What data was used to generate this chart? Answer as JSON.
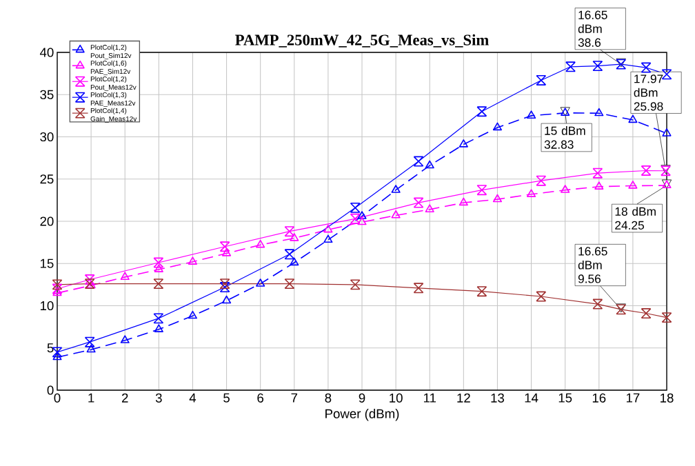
{
  "chart_data": {
    "type": "line",
    "title": "PAMP_250mW_42_5G_Meas_vs_Sim",
    "xlabel": "Power (dBm)",
    "xlim": [
      0,
      18
    ],
    "ylim": [
      0,
      40
    ],
    "xticks": [
      0,
      1,
      2,
      3,
      4,
      5,
      6,
      7,
      8,
      9,
      10,
      11,
      12,
      13,
      14,
      15,
      16,
      17,
      18
    ],
    "yticks": [
      0,
      5,
      10,
      15,
      20,
      25,
      30,
      35,
      40
    ],
    "grid": true,
    "legend": "top left",
    "series": [
      {
        "name": "PlotCol(1,2) Pout_Sim12v",
        "color": "#0000ff",
        "marker": "triangle",
        "line_style": "dashed",
        "x": [
          0,
          1,
          2,
          3,
          4,
          5,
          6,
          7,
          8,
          9,
          10,
          11,
          12,
          13,
          14,
          15,
          16,
          17,
          18
        ],
        "values": [
          3.9,
          4.8,
          5.9,
          7.2,
          8.8,
          10.6,
          12.6,
          15.1,
          17.8,
          20.6,
          23.7,
          26.6,
          29.1,
          31.1,
          32.5,
          32.83,
          32.8,
          32.0,
          30.4
        ]
      },
      {
        "name": "PlotCol(1,6) PAE_Sim12v",
        "color": "#ff00ff",
        "marker": "triangle",
        "line_style": "dashed",
        "x": [
          0,
          1,
          2,
          3,
          4,
          5,
          6,
          7,
          8,
          9,
          10,
          11,
          12,
          13,
          14,
          15,
          16,
          17,
          18
        ],
        "values": [
          11.5,
          12.4,
          13.4,
          14.3,
          15.2,
          16.2,
          17.2,
          18.0,
          19.0,
          19.9,
          20.7,
          21.4,
          22.2,
          22.6,
          23.2,
          23.7,
          24.1,
          24.2,
          24.25
        ]
      },
      {
        "name": "PlotCol(1,2) Pout_Meas12v",
        "color": "#ff00ff",
        "marker": "cross",
        "line_style": "solid",
        "x": [
          0,
          0.96,
          2.99,
          4.95,
          6.86,
          8.8,
          10.67,
          12.54,
          14.29,
          15.96,
          17.39,
          17.97
        ],
        "values": [
          12.0,
          13.1,
          15.1,
          17.0,
          18.8,
          20.3,
          22.2,
          23.7,
          24.8,
          25.7,
          26.0,
          25.98
        ]
      },
      {
        "name": "PlotCol(1,3) PAE_Meas12v",
        "color": "#0000ff",
        "marker": "cross",
        "line_style": "solid",
        "x": [
          0,
          0.96,
          2.99,
          4.95,
          6.86,
          8.8,
          10.67,
          12.54,
          14.29,
          15.16,
          15.96,
          16.65,
          17.39,
          18
        ],
        "values": [
          4.5,
          5.7,
          8.5,
          12.2,
          16.1,
          21.6,
          27.1,
          33.0,
          36.7,
          38.3,
          38.4,
          38.6,
          38.2,
          37.4
        ]
      },
      {
        "name": "PlotCol(1,4) Gain_Meas12v",
        "color": "#a03030",
        "marker": "cross",
        "line_style": "solid",
        "x": [
          0,
          0.96,
          2.99,
          4.95,
          6.86,
          8.8,
          10.67,
          12.54,
          14.29,
          15.96,
          16.65,
          17.39,
          18
        ],
        "values": [
          12.5,
          12.6,
          12.6,
          12.6,
          12.6,
          12.5,
          12.1,
          11.7,
          11.1,
          10.2,
          9.56,
          9.1,
          8.6
        ]
      }
    ],
    "annotations": [
      {
        "text": "16.65 dBm 38.6",
        "x": 16.65,
        "y": 38.6
      },
      {
        "text": "17.97 dBm 25.98",
        "x": 17.97,
        "y": 25.98
      },
      {
        "text": "15 dBm 32.83",
        "x": 15,
        "y": 32.83
      },
      {
        "text": "18 dBm 24.25",
        "x": 18,
        "y": 24.25
      },
      {
        "text": "16.65 dBm 9.56",
        "x": 16.65,
        "y": 9.56
      }
    ]
  }
}
